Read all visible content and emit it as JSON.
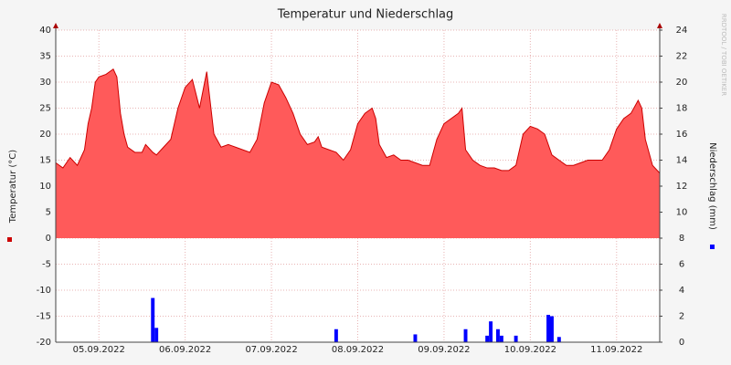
{
  "chart_data": {
    "type": "area_bar",
    "title": "Temperatur und Niederschlag",
    "ylabel": "Temperatur (°C)",
    "y2label": "Niederschlag (mm)",
    "watermark": "RRDTOOL / TOBI OETIKER",
    "xlim": [
      0,
      168
    ],
    "xticks": [
      {
        "value": 12,
        "label": "05.09.2022"
      },
      {
        "value": 36,
        "label": "06.09.2022"
      },
      {
        "value": 60,
        "label": "07.09.2022"
      },
      {
        "value": 84,
        "label": "08.09.2022"
      },
      {
        "value": 108,
        "label": "09.09.2022"
      },
      {
        "value": 132,
        "label": "10.09.2022"
      },
      {
        "value": 156,
        "label": "11.09.2022"
      }
    ],
    "ylim": [
      -20,
      40
    ],
    "yticks": [
      -20,
      -15,
      -10,
      -5,
      0,
      5,
      10,
      15,
      20,
      25,
      30,
      35,
      40
    ],
    "y2lim": [
      0,
      24
    ],
    "y2ticks": [
      0,
      2,
      4,
      6,
      8,
      10,
      12,
      14,
      16,
      18,
      20,
      22,
      24
    ],
    "grid": true,
    "series": [
      {
        "kind": "area",
        "color": "#ff5a5a",
        "line_color": "#cc0000",
        "x": [
          0,
          2,
          4,
          6,
          8,
          9,
          10,
          11,
          12,
          14,
          16,
          17,
          18,
          19,
          20,
          22,
          24,
          25,
          27,
          28,
          30,
          32,
          34,
          36,
          38,
          40,
          42,
          43,
          44,
          46,
          48,
          50,
          52,
          54,
          56,
          58,
          60,
          62,
          64,
          66,
          68,
          70,
          72,
          73,
          74,
          76,
          78,
          80,
          82,
          84,
          86,
          88,
          89,
          90,
          92,
          94,
          96,
          98,
          100,
          102,
          104,
          106,
          108,
          110,
          112,
          113,
          114,
          116,
          118,
          120,
          122,
          124,
          126,
          128,
          130,
          132,
          134,
          136,
          138,
          140,
          142,
          144,
          146,
          148,
          150,
          152,
          154,
          156,
          158,
          160,
          162,
          163,
          164,
          166,
          168
        ],
        "values": [
          14.5,
          13.5,
          15.5,
          14,
          17,
          22,
          25,
          30,
          31,
          31.5,
          32.5,
          31,
          24,
          20,
          17.5,
          16.5,
          16.5,
          18,
          16.5,
          16,
          17.5,
          19,
          25,
          29,
          30.5,
          25,
          32,
          26,
          20,
          17.5,
          18,
          17.5,
          17,
          16.5,
          19,
          26,
          30,
          29.5,
          27,
          24,
          20,
          18,
          18.5,
          19.5,
          17.5,
          17,
          16.5,
          15,
          17,
          22,
          24,
          25,
          23,
          18,
          15.5,
          16,
          15,
          15,
          14.5,
          14,
          14,
          19,
          22,
          23,
          24,
          25,
          17,
          15,
          14,
          13.5,
          13.5,
          13,
          13,
          14,
          20,
          21.5,
          21,
          20,
          16,
          15,
          14,
          14,
          14.5,
          15,
          15,
          15,
          17,
          21,
          23,
          24,
          26.5,
          25,
          19,
          14,
          12.5
        ]
      },
      {
        "kind": "bar",
        "axis": "y2",
        "color": "#0000ff",
        "x": [
          27,
          28,
          78,
          100,
          114,
          120,
          121,
          123,
          124,
          128,
          137,
          138,
          140
        ],
        "values": [
          3.4,
          1.1,
          1.0,
          0.6,
          1.0,
          0.5,
          1.6,
          1.0,
          0.5,
          0.5,
          2.1,
          2.0,
          0.4
        ]
      }
    ]
  }
}
